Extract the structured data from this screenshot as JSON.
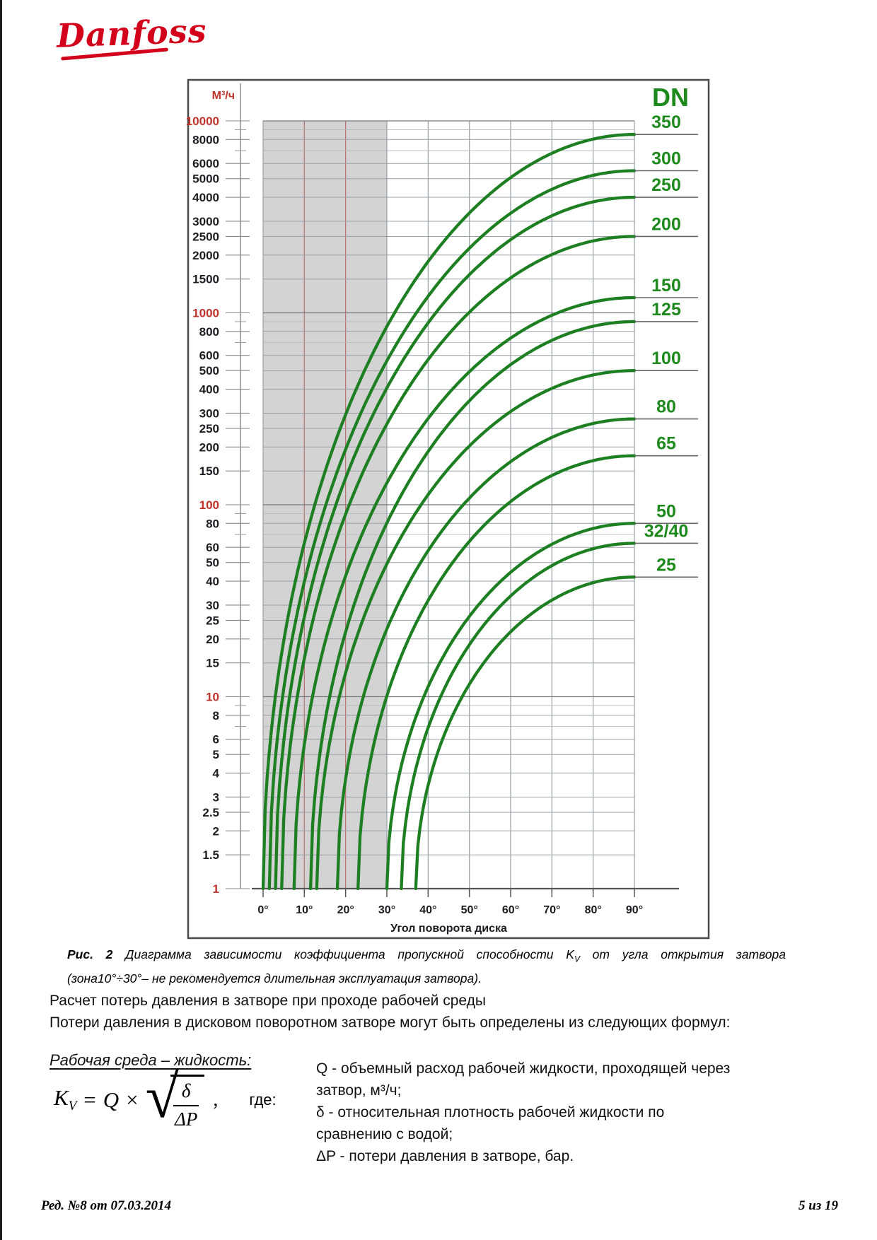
{
  "page": {
    "logo_text": "Danfoss",
    "footer_left": "Ред. №8 от 07.03.2014",
    "footer_right": "5 из 19"
  },
  "caption": {
    "fig_label": "Рис. 2",
    "part1": "Диаграмма зависимости коэффициента пропускной способности ",
    "kv_base": "K",
    "kv_sub": "V",
    "part2": " от угла открытия затвора",
    "line2": "(зона10°÷30°– не рекомендуется длительная эксплуатация затвора)."
  },
  "body": {
    "para1": "Расчет потерь давления в затворе при проходе рабочей среды",
    "para2": "Потери давления в дисковом поворотном затворе могут быть определены из следующих формул:",
    "section_heading": "Рабочая среда – жидкость:",
    "formula": {
      "k": "K",
      "k_sub": "V",
      "equals": "=",
      "q": "Q",
      "times": "×",
      "sqrt_glyph": "√",
      "numerator": "δ",
      "denominator": "ΔP",
      "comma": ",",
      "where": "где:"
    },
    "definitions": [
      "Q - объемный расход рабочей жидкости, проходящей через затвор, м³/ч;",
      "δ - относительная плотность рабочей жидкости по сравнению с водой;",
      "ΔP - потери давления в затворе, бар."
    ]
  },
  "chart_data": {
    "type": "line",
    "title": "",
    "xlabel": "Угол поворота диска",
    "ylabel": "М³/ч",
    "x_ticks_deg": [
      0,
      10,
      20,
      30,
      40,
      50,
      60,
      70,
      80,
      90
    ],
    "xlim": [
      0,
      90
    ],
    "ylim": [
      1,
      10000
    ],
    "y_scale": "log",
    "y_red_decades": [
      10000,
      1000,
      100,
      10,
      1
    ],
    "y_labeled_ticks": [
      10000,
      8000,
      6000,
      5000,
      4000,
      3000,
      2500,
      2000,
      1500,
      1000,
      800,
      600,
      500,
      400,
      300,
      250,
      200,
      150,
      100,
      80,
      60,
      50,
      40,
      30,
      25,
      20,
      15,
      10,
      8,
      6,
      5,
      4,
      3,
      2.5,
      2,
      1.5,
      1
    ],
    "y_minor_gridlines": [
      9000,
      7000,
      900,
      700,
      90,
      70,
      9,
      7
    ],
    "legend_title": "DN",
    "not_recommended_zone_deg": [
      10,
      30
    ],
    "shaded_zone_drawn_deg": [
      0,
      30
    ],
    "zone_red_gridlines_deg": [
      10,
      20
    ],
    "series": [
      {
        "name": "350",
        "open_angle_at_kv1_deg": 0,
        "kv_at_90deg": 8500
      },
      {
        "name": "300",
        "open_angle_at_kv1_deg": 1.5,
        "kv_at_90deg": 5500
      },
      {
        "name": "250",
        "open_angle_at_kv1_deg": 3,
        "kv_at_90deg": 4000
      },
      {
        "name": "200",
        "open_angle_at_kv1_deg": 4.5,
        "kv_at_90deg": 2500
      },
      {
        "name": "150",
        "open_angle_at_kv1_deg": 7.5,
        "kv_at_90deg": 1200
      },
      {
        "name": "125",
        "open_angle_at_kv1_deg": 11.5,
        "kv_at_90deg": 900
      },
      {
        "name": "100",
        "open_angle_at_kv1_deg": 13,
        "kv_at_90deg": 500
      },
      {
        "name": "80",
        "open_angle_at_kv1_deg": 18,
        "kv_at_90deg": 280
      },
      {
        "name": "65",
        "open_angle_at_kv1_deg": 23,
        "kv_at_90deg": 180
      },
      {
        "name": "50",
        "open_angle_at_kv1_deg": 30,
        "kv_at_90deg": 80
      },
      {
        "name": "32/40",
        "open_angle_at_kv1_deg": 33.5,
        "kv_at_90deg": 63
      },
      {
        "name": "25",
        "open_angle_at_kv1_deg": 37,
        "kv_at_90deg": 42
      }
    ],
    "colors": {
      "curve": "#1d7f22",
      "dn_label": "#1e8a1e",
      "red_tick": "#c0332b",
      "zone_fill": "#d3d3d3",
      "zone_redline": "#b87070",
      "grid": "#9aa0a8",
      "grid_minor": "#b3b8bd",
      "grid_major": "#74787e",
      "axis": "#555555",
      "frame": "#4a4a4a",
      "leader": "#666666"
    }
  }
}
